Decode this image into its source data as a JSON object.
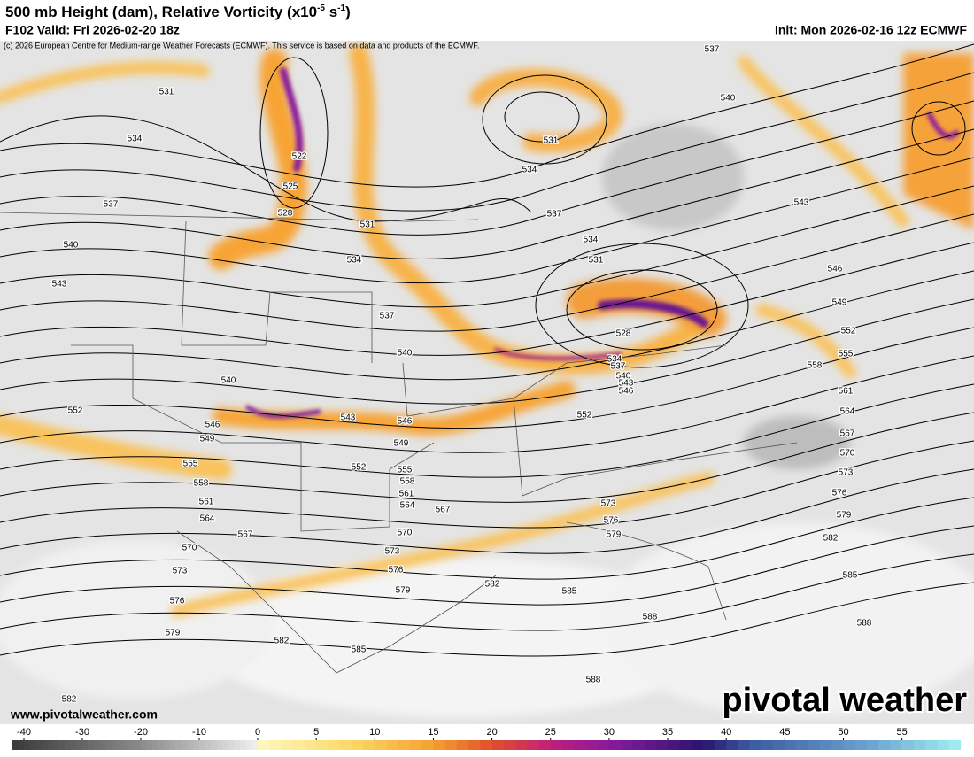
{
  "header": {
    "title": "500 mb Height (dam), Relative Vorticity (x10",
    "title_exponent": "-5",
    "title_unit": " s",
    "title_unit_exponent": "-1",
    "title_close": ")",
    "valid": "F102 Valid: Fri 2026-02-20 18z",
    "init": "Init: Mon 2026-02-16 12z ECMWF",
    "credit": "(c) 2026 European Centre for Medium-range Weather Forecasts (ECMWF). This service is based on data and products of the ECMWF."
  },
  "contours": {
    "labels": [
      531,
      534,
      522,
      525,
      528,
      537,
      540,
      543,
      531,
      534,
      537,
      540,
      540,
      546,
      549,
      543,
      546,
      549,
      552,
      552,
      555,
      558,
      561,
      564,
      567,
      555,
      558,
      561,
      564,
      567,
      570,
      573,
      576,
      579,
      582,
      585,
      588,
      588,
      588,
      585,
      582,
      579,
      576,
      573,
      570,
      567,
      564,
      561,
      558,
      555,
      552,
      549,
      546,
      543,
      540,
      537,
      531,
      534,
      537,
      534,
      531,
      528,
      534,
      537,
      540,
      543,
      546,
      552,
      573,
      576,
      579,
      570,
      573,
      576,
      579,
      582,
      585,
      582
    ]
  },
  "colorbar": {
    "ticks": [
      -40,
      -30,
      -20,
      -10,
      0,
      5,
      10,
      15,
      20,
      25,
      30,
      35,
      40,
      45,
      50,
      55
    ]
  },
  "footer": {
    "website": "www.pivotalweather.com",
    "brand": "pivotal weather"
  }
}
